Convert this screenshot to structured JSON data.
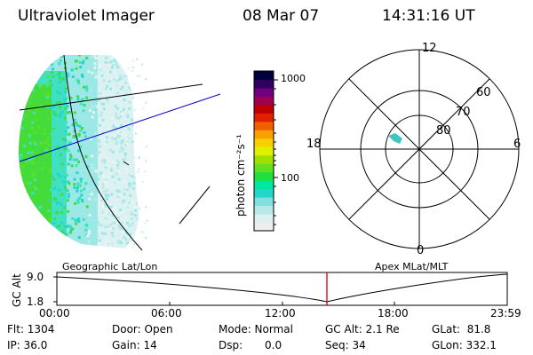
{
  "header": {
    "instrument": "Ultraviolet Imager",
    "date": "08 Mar 07",
    "time": "14:31:16 UT"
  },
  "colorbar": {
    "unit_label": "photon cm⁻²s⁻¹",
    "tick_high": "1000",
    "tick_low": "100",
    "colors": [
      "#eeeeee",
      "#e0f0f0",
      "#b8e8e8",
      "#80e0e0",
      "#20d8c8",
      "#00e8a0",
      "#20e040",
      "#60e020",
      "#a0e000",
      "#e0f000",
      "#f8d000",
      "#f8a000",
      "#f06000",
      "#e02000",
      "#c00000",
      "#a00050",
      "#700080",
      "#300060",
      "#000040"
    ]
  },
  "polar_plot": {
    "mlt_labels": {
      "top": "12",
      "left": "18",
      "right": "6",
      "bottom": "0"
    },
    "lat_labels": [
      "60",
      "70",
      "80"
    ]
  },
  "timeline": {
    "y_axis_title": "GC Alt",
    "y_ticks": [
      "9.0",
      "1.8"
    ],
    "left_label": "Geographic Lat/Lon",
    "right_label": "Apex MLat/MLT",
    "x_ticks": [
      "00:00",
      "06:00",
      "12:00",
      "18:00",
      "23:59"
    ],
    "marker_color": "#cc0000"
  },
  "status": {
    "flt": "Flt: 1304",
    "ip": "IP: 36.0",
    "door": "Door: Open",
    "gain": "Gain: 14",
    "mode": "Mode: Normal",
    "dsp": "Dsp:",
    "dsp_value": "0.0",
    "gc_alt": "GC Alt: 2.1 Re",
    "seq": "Seq: 34",
    "glat": "GLat:  81.8",
    "glon": "GLon: 332.1"
  }
}
